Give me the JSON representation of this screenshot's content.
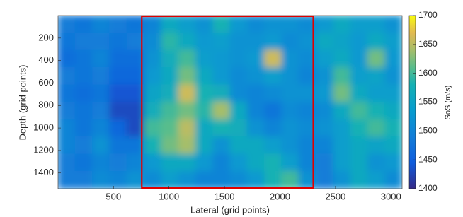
{
  "chart_data": {
    "type": "heatmap",
    "xlabel": "Lateral (grid points)",
    "ylabel": "Depth (grid points)",
    "xlim": [
      1,
      3100
    ],
    "ylim": [
      0,
      1540
    ],
    "y_reversed": true,
    "xticks": [
      500,
      1000,
      1500,
      2000,
      2500,
      3000
    ],
    "yticks": [
      200,
      400,
      600,
      800,
      1000,
      1200,
      1400
    ],
    "z": [
      [
        1490,
        1480,
        1500,
        1490,
        1480,
        1500,
        1560,
        1540,
        1520,
        1580,
        1530,
        1510,
        1520,
        1520,
        1510,
        1530,
        1560,
        1540,
        1540,
        1520
      ],
      [
        1480,
        1490,
        1490,
        1480,
        1490,
        1510,
        1590,
        1560,
        1530,
        1540,
        1520,
        1520,
        1530,
        1510,
        1520,
        1560,
        1550,
        1530,
        1560,
        1540
      ],
      [
        1470,
        1480,
        1500,
        1470,
        1470,
        1520,
        1570,
        1600,
        1540,
        1530,
        1520,
        1530,
        1660,
        1520,
        1510,
        1540,
        1560,
        1530,
        1620,
        1530
      ],
      [
        1490,
        1480,
        1490,
        1460,
        1460,
        1530,
        1560,
        1620,
        1560,
        1530,
        1510,
        1520,
        1540,
        1520,
        1500,
        1520,
        1600,
        1540,
        1550,
        1520
      ],
      [
        1480,
        1470,
        1480,
        1440,
        1440,
        1550,
        1570,
        1660,
        1580,
        1570,
        1510,
        1500,
        1510,
        1520,
        1520,
        1530,
        1620,
        1560,
        1540,
        1540
      ],
      [
        1490,
        1480,
        1490,
        1430,
        1430,
        1570,
        1600,
        1620,
        1590,
        1640,
        1560,
        1500,
        1480,
        1510,
        1500,
        1510,
        1560,
        1600,
        1580,
        1560
      ],
      [
        1500,
        1480,
        1500,
        1460,
        1430,
        1600,
        1610,
        1650,
        1560,
        1580,
        1570,
        1520,
        1500,
        1520,
        1510,
        1520,
        1540,
        1580,
        1600,
        1580
      ],
      [
        1500,
        1490,
        1520,
        1480,
        1480,
        1580,
        1620,
        1640,
        1560,
        1520,
        1560,
        1560,
        1540,
        1520,
        1500,
        1500,
        1540,
        1560,
        1550,
        1560
      ],
      [
        1490,
        1480,
        1500,
        1490,
        1500,
        1530,
        1560,
        1560,
        1530,
        1500,
        1530,
        1560,
        1580,
        1540,
        1500,
        1490,
        1540,
        1560,
        1520,
        1530
      ],
      [
        1490,
        1490,
        1510,
        1500,
        1520,
        1510,
        1540,
        1520,
        1500,
        1500,
        1510,
        1530,
        1580,
        1600,
        1520,
        1490,
        1520,
        1560,
        1540,
        1510
      ]
    ],
    "colorbar": {
      "label": "SoS (m/s)",
      "lim": [
        1400,
        1700
      ],
      "ticks": [
        1400,
        1450,
        1500,
        1550,
        1600,
        1650,
        1700
      ],
      "colormap": "parula"
    },
    "highlight": {
      "xlim": [
        755,
        2300
      ],
      "color": "#e00000"
    }
  }
}
